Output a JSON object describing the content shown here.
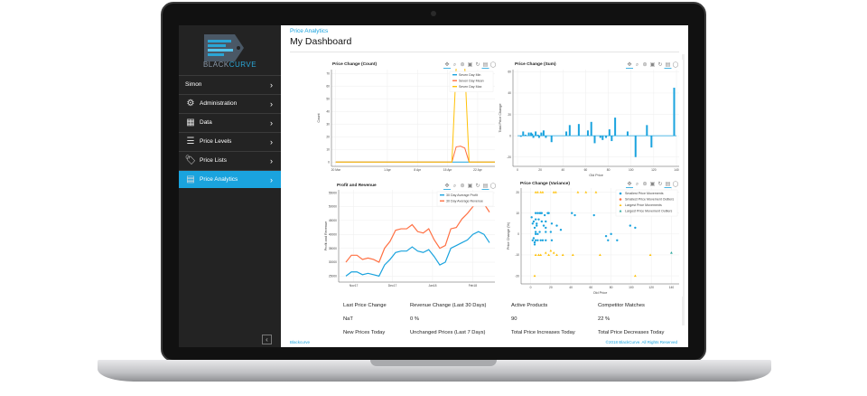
{
  "brand": {
    "name_part1": "BLACK",
    "name_part2": "CURVE"
  },
  "sidebar": {
    "items": [
      {
        "label": "Simon",
        "icon": "none"
      },
      {
        "label": "Administration",
        "icon": "gear-icon"
      },
      {
        "label": "Data",
        "icon": "table-icon"
      },
      {
        "label": "Price Levels",
        "icon": "list-icon"
      },
      {
        "label": "Price Lists",
        "icon": "tags-icon"
      },
      {
        "label": "Price Analytics",
        "icon": "chart-icon",
        "active": true
      }
    ],
    "collapse": "‹"
  },
  "header": {
    "breadcrumb": "Price Analytics",
    "title": "My Dashboard"
  },
  "toolbar_icons": [
    "pan-icon",
    "zoom-icon",
    "wheel-zoom-icon",
    "save-icon",
    "reset-icon",
    "hover-icon",
    "help-icon"
  ],
  "colors": {
    "accent": "#1aa3de",
    "min": "#1aa3de",
    "mean": "#ff7043",
    "max": "#ffc107",
    "green": "#26a69a",
    "sidebar": "#232323"
  },
  "chart_data": [
    {
      "type": "line",
      "title": "Price Change (Count)",
      "xlabel": "",
      "ylabel": "Count",
      "xticks": [
        "20 Mar",
        "1 Apr",
        "8 Apr",
        "15 Apr",
        "22 Apr"
      ],
      "ylim": [
        -2,
        73
      ],
      "yticks": [
        0,
        10,
        20,
        30,
        40,
        50,
        60,
        70
      ],
      "grid": true,
      "legend": "top-right",
      "series": [
        {
          "name": "Seven Day Min",
          "color": "#1aa3de",
          "points": [
            [
              "20 Mar",
              0
            ],
            [
              "16 Apr",
              0
            ],
            [
              "17 Apr",
              0
            ],
            [
              "20 Apr",
              0
            ],
            [
              "26 Apr",
              0
            ]
          ]
        },
        {
          "name": "Seven Day Mean",
          "color": "#ff7043",
          "points": [
            [
              "20 Mar",
              0
            ],
            [
              "16 Apr",
              0
            ],
            [
              "17 Apr",
              12
            ],
            [
              "18 Apr",
              12.5
            ],
            [
              "19 Apr",
              11
            ],
            [
              "20 Apr",
              0
            ],
            [
              "26 Apr",
              0
            ]
          ]
        },
        {
          "name": "Seven Day Max",
          "color": "#ffc107",
          "points": [
            [
              "20 Mar",
              0
            ],
            [
              "16 Apr",
              0
            ],
            [
              "17 Apr",
              75
            ],
            [
              "19 Apr",
              75
            ],
            [
              "20 Apr",
              0
            ],
            [
              "26 Apr",
              0
            ]
          ]
        }
      ]
    },
    {
      "type": "bar",
      "title": "Price Change (Sum)",
      "xlabel": "Old Price",
      "ylabel": "Total Price Change",
      "xlim": [
        0,
        140
      ],
      "ylim": [
        -27,
        62
      ],
      "xticks": [
        0,
        20,
        40,
        60,
        80,
        100,
        120,
        140
      ],
      "yticks": [
        -20,
        0,
        20,
        40,
        60
      ],
      "grid": true,
      "bars": [
        [
          3,
          -1
        ],
        [
          5,
          4
        ],
        [
          7,
          1
        ],
        [
          10,
          3
        ],
        [
          12,
          3
        ],
        [
          13,
          2
        ],
        [
          14,
          -2
        ],
        [
          16,
          4
        ],
        [
          18,
          1
        ],
        [
          19,
          -2
        ],
        [
          21,
          3
        ],
        [
          23,
          5
        ],
        [
          25,
          -2
        ],
        [
          30,
          -6
        ],
        [
          43,
          4
        ],
        [
          46,
          10
        ],
        [
          54,
          11
        ],
        [
          62,
          5
        ],
        [
          65,
          13
        ],
        [
          68,
          -7
        ],
        [
          73,
          -2
        ],
        [
          75,
          -4
        ],
        [
          78,
          -2
        ],
        [
          81,
          6
        ],
        [
          83,
          -5
        ],
        [
          86,
          17
        ],
        [
          97,
          4
        ],
        [
          104,
          -20
        ],
        [
          114,
          10
        ],
        [
          118,
          -11
        ],
        [
          138,
          45
        ]
      ]
    },
    {
      "type": "line",
      "title": "Profit and Revenue",
      "xlabel": "",
      "ylabel": "Profit and Revenue",
      "xticks": [
        "Nov17",
        "Dec17",
        "Jan18",
        "Feb18"
      ],
      "ylim": [
        23500,
        56000
      ],
      "yticks": [
        25000,
        30000,
        35000,
        40000,
        45000,
        50000,
        55000
      ],
      "grid": true,
      "legend": "top-right",
      "series": [
        {
          "name": "30 Day Average Profit",
          "color": "#1aa3de",
          "values": [
            25000,
            26500,
            26500,
            25500,
            26000,
            25500,
            25000,
            29000,
            31000,
            33500,
            34000,
            34000,
            35500,
            34000,
            33500,
            34500,
            32000,
            29000,
            30000,
            35000,
            36000,
            37000,
            38000,
            40000,
            41000,
            40000,
            37000
          ]
        },
        {
          "name": "30 Day Average Revenue",
          "color": "#ff7043",
          "values": [
            30000,
            32500,
            32500,
            31000,
            31500,
            31000,
            30000,
            35000,
            37500,
            41500,
            42000,
            42000,
            43500,
            41000,
            40500,
            42000,
            38000,
            35000,
            36000,
            42000,
            42500,
            45500,
            47500,
            50000,
            53000,
            51000,
            48000
          ]
        }
      ],
      "x_range": [
        "Oct 26 2017",
        "Feb 14 2018"
      ]
    },
    {
      "type": "scatter",
      "title": "Price Change (Variance)",
      "xlabel": "Old Price",
      "ylabel": "Price Change (%)",
      "xlim": [
        -5,
        145
      ],
      "ylim": [
        -23,
        22
      ],
      "xticks": [
        0,
        20,
        40,
        60,
        80,
        100,
        120,
        140
      ],
      "yticks": [
        -20,
        -10,
        0,
        10,
        20
      ],
      "grid": true,
      "legend": "top-right",
      "series": [
        {
          "name": "Smallest Price Movements",
          "color": "#1aa3de",
          "marker": "circle",
          "points": [
            [
              1,
              8
            ],
            [
              2,
              5
            ],
            [
              3,
              6
            ],
            [
              4,
              3
            ],
            [
              5,
              7
            ],
            [
              5,
              10
            ],
            [
              6,
              5
            ],
            [
              6,
              4
            ],
            [
              7,
              10
            ],
            [
              8,
              7
            ],
            [
              9,
              10
            ],
            [
              10,
              10
            ],
            [
              11,
              6
            ],
            [
              11,
              10
            ],
            [
              13,
              4
            ],
            [
              14,
              9
            ],
            [
              15,
              6
            ],
            [
              15,
              3
            ],
            [
              17,
              10
            ],
            [
              18,
              10
            ],
            [
              20,
              1
            ],
            [
              21,
              5
            ],
            [
              26,
              4
            ],
            [
              30,
              2
            ],
            [
              41,
              10
            ],
            [
              44,
              9
            ],
            [
              63,
              9
            ],
            [
              75,
              -1
            ],
            [
              77,
              -3
            ],
            [
              80,
              0
            ],
            [
              86,
              -3
            ],
            [
              99,
              4
            ],
            [
              104,
              3
            ],
            [
              5,
              -3
            ],
            [
              3,
              -2
            ],
            [
              2,
              -3
            ],
            [
              4,
              -4
            ],
            [
              7,
              -3
            ],
            [
              10,
              -3
            ],
            [
              12,
              -3
            ],
            [
              15,
              -3
            ],
            [
              7,
              0
            ],
            [
              5,
              0
            ],
            [
              9,
              1
            ],
            [
              15,
              1
            ],
            [
              21,
              -3
            ],
            [
              5,
              1
            ],
            [
              4,
              -5
            ]
          ]
        },
        {
          "name": "Smallest Price Movement Outliers",
          "color": "#ff7043",
          "marker": "circle",
          "points": []
        },
        {
          "name": "Largest Price Movements",
          "color": "#ffc107",
          "marker": "triangle",
          "points": [
            [
              5,
              20
            ],
            [
              7,
              20
            ],
            [
              10,
              20
            ],
            [
              12,
              20
            ],
            [
              23,
              20
            ],
            [
              25,
              20
            ],
            [
              47,
              20
            ],
            [
              55,
              20
            ],
            [
              65,
              20
            ],
            [
              5,
              -10
            ],
            [
              8,
              -10
            ],
            [
              10,
              -10
            ],
            [
              15,
              -9
            ],
            [
              18,
              -10
            ],
            [
              20,
              -8
            ],
            [
              23,
              -9
            ],
            [
              26,
              -10
            ],
            [
              32,
              -10
            ],
            [
              42,
              -10
            ],
            [
              69,
              -10
            ],
            [
              119,
              -10
            ],
            [
              4,
              -20
            ],
            [
              104,
              -20
            ]
          ]
        },
        {
          "name": "Largest Price Movement Outliers",
          "color": "#26a69a",
          "marker": "triangle",
          "points": [
            [
              140,
              -9
            ]
          ]
        }
      ]
    }
  ],
  "stats": [
    {
      "label": "Last Price Change",
      "value": "NaT"
    },
    {
      "label": "Revenue Change (Last 30 Days)",
      "value": "0 %"
    },
    {
      "label": "Active Products",
      "value": "90"
    },
    {
      "label": "Competitor Matches",
      "value": "22 %"
    },
    {
      "label": "New Prices Today"
    },
    {
      "label": "Unchanged Prices (Last 7 Days)"
    },
    {
      "label": "Total Price Increases Today"
    },
    {
      "label": "Total Price Decreases Today"
    }
  ],
  "footer": {
    "left": "Blackcurve",
    "right": "©2018 BlackCurve. All Rights Reserved"
  }
}
